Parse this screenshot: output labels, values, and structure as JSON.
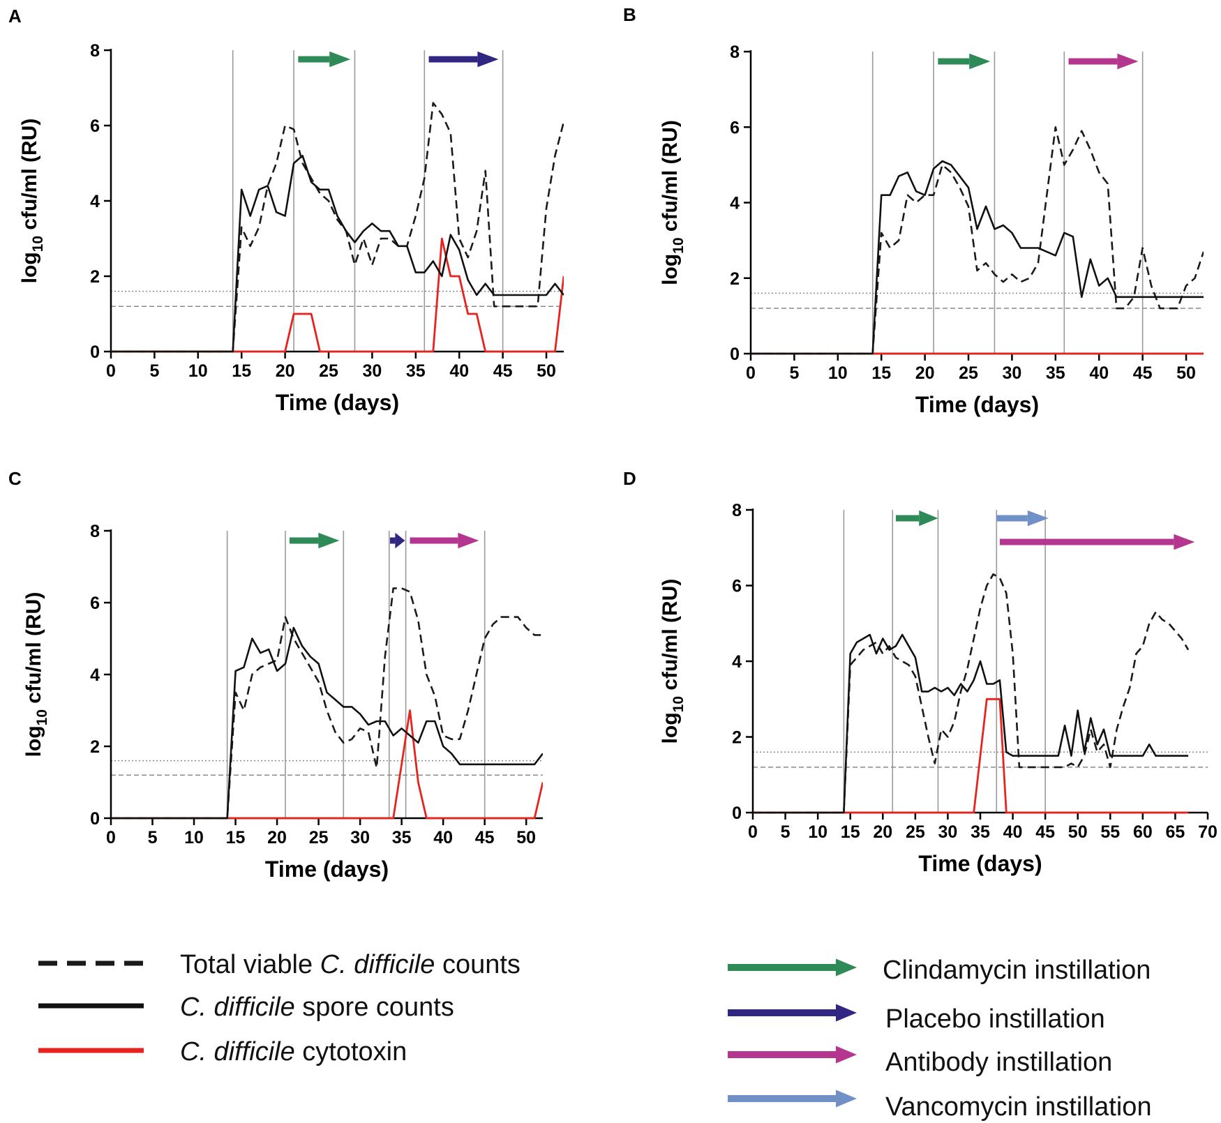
{
  "colors": {
    "total": "#1a1a1a",
    "spore": "#111111",
    "cytotoxin": "#e8231e",
    "clindamycin": "#2e8b57",
    "placebo": "#312783",
    "antibody": "#b4368f",
    "vancomycin": "#7190c8",
    "vline": "#9a9a9a",
    "lod": "#8a8a8a"
  },
  "legend": {
    "series": [
      {
        "key": "total",
        "style": "dashed",
        "prefix": "Total viable ",
        "italic": "C. difficile",
        "suffix": " counts"
      },
      {
        "key": "spore",
        "style": "solid",
        "prefix": "",
        "italic": "C. difficile",
        "suffix": " spore counts"
      },
      {
        "key": "cytotoxin",
        "style": "red",
        "prefix": "",
        "italic": "C. difficile",
        "suffix": " cytotoxin"
      }
    ],
    "arrows": [
      {
        "key": "clindamycin",
        "label": "Clindamycin instillation"
      },
      {
        "key": "placebo",
        "label": "Placebo instillation"
      },
      {
        "key": "antibody",
        "label": "Antibody instillation"
      },
      {
        "key": "vancomycin",
        "label": "Vancomycin instillation"
      }
    ]
  },
  "chart_data": [
    {
      "panel": "A",
      "type": "line",
      "xlabel": "Time (days)",
      "ylabel": {
        "base": "log",
        "sub": "10",
        "rest": " cfu/ml (RU)"
      },
      "xlim": [
        0,
        52
      ],
      "ylim": [
        0,
        8
      ],
      "xticks": [
        0,
        5,
        10,
        15,
        20,
        25,
        30,
        35,
        40,
        45,
        50
      ],
      "yticks": [
        0,
        2,
        4,
        6,
        8
      ],
      "vlines": [
        14,
        21,
        28,
        36,
        45
      ],
      "lod": [
        1.6,
        1.2
      ],
      "arrows": [
        {
          "drug": "clindamycin",
          "from": 21.5,
          "to": 27.5
        },
        {
          "drug": "placebo",
          "from": 36.5,
          "to": 44.5
        }
      ],
      "series": [
        {
          "name": "Total viable C. difficile counts",
          "key": "total",
          "x": [
            0,
            14,
            15,
            16,
            17,
            18,
            19,
            20,
            21,
            22,
            23,
            24,
            25,
            26,
            27,
            28,
            29,
            30,
            31,
            32,
            33,
            34,
            35,
            36,
            37,
            38,
            39,
            40,
            41,
            42,
            43,
            44,
            45,
            46,
            47,
            48,
            49,
            50,
            51,
            52
          ],
          "y": [
            0,
            0,
            3.3,
            2.8,
            3.3,
            4.4,
            5.0,
            6.0,
            5.9,
            5.0,
            4.6,
            4.2,
            4.0,
            3.5,
            3.2,
            2.3,
            3.0,
            2.3,
            3.0,
            3.0,
            2.8,
            2.8,
            3.6,
            4.6,
            6.6,
            6.3,
            5.8,
            3.0,
            2.5,
            3.2,
            4.8,
            1.2,
            1.2,
            1.2,
            1.2,
            1.2,
            1.2,
            3.8,
            5.2,
            6.1
          ]
        },
        {
          "name": "C. difficile spore counts",
          "key": "spore",
          "x": [
            0,
            14,
            15,
            16,
            17,
            18,
            19,
            20,
            21,
            22,
            23,
            24,
            25,
            26,
            27,
            28,
            29,
            30,
            31,
            32,
            33,
            34,
            35,
            36,
            37,
            38,
            39,
            40,
            41,
            42,
            43,
            44,
            45,
            46,
            47,
            48,
            49,
            50,
            51,
            52
          ],
          "y": [
            0,
            0,
            4.3,
            3.6,
            4.3,
            4.4,
            3.7,
            3.6,
            5.0,
            5.2,
            4.5,
            4.3,
            4.3,
            3.6,
            3.2,
            2.9,
            3.2,
            3.4,
            3.2,
            3.2,
            2.8,
            2.8,
            2.1,
            2.1,
            2.4,
            2.0,
            3.1,
            2.7,
            1.9,
            1.5,
            1.8,
            1.5,
            1.5,
            1.5,
            1.5,
            1.5,
            1.5,
            1.5,
            1.8,
            1.5
          ]
        },
        {
          "name": "C. difficile cytotoxin",
          "key": "cytotoxin",
          "x": [
            0,
            20,
            21,
            22,
            23,
            24,
            37,
            38,
            39,
            40,
            41,
            42,
            43,
            51,
            52
          ],
          "y": [
            0,
            0,
            1,
            1,
            1,
            0,
            0,
            3,
            2,
            2,
            1,
            1,
            0,
            0,
            2
          ]
        }
      ]
    },
    {
      "panel": "B",
      "type": "line",
      "xlabel": "Time (days)",
      "ylabel": {
        "base": "log",
        "sub": "10",
        "rest": " cfu/ml (RU)"
      },
      "xlim": [
        0,
        52
      ],
      "ylim": [
        0,
        8
      ],
      "xticks": [
        0,
        5,
        10,
        15,
        20,
        25,
        30,
        35,
        40,
        45,
        50
      ],
      "yticks": [
        0,
        2,
        4,
        6,
        8
      ],
      "vlines": [
        14,
        21,
        28,
        36,
        45
      ],
      "lod": [
        1.6,
        1.2
      ],
      "arrows": [
        {
          "drug": "clindamycin",
          "from": 21.5,
          "to": 27.5
        },
        {
          "drug": "antibody",
          "from": 36.5,
          "to": 44.5
        }
      ],
      "series": [
        {
          "name": "Total viable C. difficile counts",
          "key": "total",
          "x": [
            0,
            14,
            15,
            16,
            17,
            18,
            19,
            20,
            21,
            22,
            23,
            24,
            25,
            26,
            27,
            28,
            29,
            30,
            31,
            32,
            33,
            34,
            35,
            36,
            37,
            38,
            39,
            40,
            41,
            42,
            43,
            44,
            45,
            46,
            47,
            48,
            49,
            50,
            51,
            52
          ],
          "y": [
            0,
            0,
            3.2,
            2.8,
            3.0,
            4.2,
            4.0,
            4.2,
            4.2,
            5.0,
            4.8,
            4.4,
            3.9,
            2.2,
            2.4,
            2.1,
            1.9,
            2.1,
            1.9,
            2.0,
            2.4,
            4.2,
            6.0,
            5.0,
            5.4,
            5.9,
            5.4,
            4.8,
            4.5,
            1.2,
            1.2,
            1.5,
            2.8,
            1.8,
            1.2,
            1.2,
            1.2,
            1.8,
            2.0,
            2.7
          ]
        },
        {
          "name": "C. difficile spore counts",
          "key": "spore",
          "x": [
            0,
            14,
            15,
            16,
            17,
            18,
            19,
            20,
            21,
            22,
            23,
            24,
            25,
            26,
            27,
            28,
            29,
            30,
            31,
            32,
            33,
            34,
            35,
            36,
            37,
            38,
            39,
            40,
            41,
            42,
            43,
            44,
            45,
            46,
            47,
            48,
            49,
            50,
            51,
            52
          ],
          "y": [
            0,
            0,
            4.2,
            4.2,
            4.7,
            4.8,
            4.3,
            4.2,
            4.9,
            5.1,
            5.0,
            4.7,
            4.4,
            3.3,
            3.9,
            3.3,
            3.4,
            3.2,
            2.8,
            2.8,
            2.8,
            2.7,
            2.6,
            3.2,
            3.1,
            1.5,
            2.5,
            1.8,
            2.0,
            1.5,
            1.5,
            1.5,
            1.5,
            1.5,
            1.5,
            1.5,
            1.5,
            1.5,
            1.5,
            1.5
          ]
        },
        {
          "name": "C. difficile cytotoxin",
          "key": "cytotoxin",
          "x": [
            0,
            52
          ],
          "y": [
            0,
            0
          ]
        }
      ]
    },
    {
      "panel": "C",
      "type": "line",
      "xlabel": "Time (days)",
      "ylabel": {
        "base": "log",
        "sub": "10",
        "rest": " cfu/ml (RU)"
      },
      "xlim": [
        0,
        52
      ],
      "ylim": [
        0,
        8
      ],
      "xticks": [
        0,
        5,
        10,
        15,
        20,
        25,
        30,
        35,
        40,
        45,
        50
      ],
      "yticks": [
        0,
        2,
        4,
        6,
        8
      ],
      "vlines": [
        14,
        21,
        28,
        33.5,
        35.5,
        45
      ],
      "lod": [
        1.6,
        1.2
      ],
      "arrows": [
        {
          "drug": "clindamycin",
          "from": 21.5,
          "to": 27.5
        },
        {
          "drug": "placebo",
          "from": 33.6,
          "to": 35.4
        },
        {
          "drug": "antibody",
          "from": 36,
          "to": 44.3
        }
      ],
      "series": [
        {
          "name": "Total viable C. difficile counts",
          "key": "total",
          "x": [
            0,
            14,
            15,
            16,
            17,
            18,
            19,
            20,
            21,
            22,
            23,
            24,
            25,
            26,
            27,
            28,
            29,
            30,
            31,
            32,
            33,
            34,
            35,
            36,
            37,
            38,
            39,
            40,
            41,
            42,
            43,
            44,
            45,
            46,
            47,
            48,
            49,
            50,
            51,
            52
          ],
          "y": [
            0,
            0,
            3.5,
            3.0,
            4.0,
            4.2,
            4.3,
            4.4,
            5.6,
            5.0,
            4.6,
            4.2,
            3.8,
            3.0,
            2.4,
            2.1,
            2.2,
            2.5,
            2.4,
            1.4,
            4.5,
            6.4,
            6.4,
            6.3,
            5.5,
            4.0,
            3.4,
            2.3,
            2.2,
            2.2,
            3.0,
            4.0,
            5.0,
            5.4,
            5.6,
            5.6,
            5.6,
            5.3,
            5.1,
            5.1
          ]
        },
        {
          "name": "C. difficile spore counts",
          "key": "spore",
          "x": [
            0,
            14,
            15,
            16,
            17,
            18,
            19,
            20,
            21,
            22,
            23,
            24,
            25,
            26,
            27,
            28,
            29,
            30,
            31,
            32,
            33,
            34,
            35,
            36,
            37,
            38,
            39,
            40,
            41,
            42,
            43,
            44,
            45,
            46,
            47,
            48,
            49,
            50,
            51,
            52
          ],
          "y": [
            0,
            0,
            4.1,
            4.2,
            5.0,
            4.6,
            4.7,
            4.1,
            4.3,
            5.3,
            4.8,
            4.5,
            4.3,
            3.5,
            3.3,
            3.1,
            3.1,
            2.9,
            2.6,
            2.7,
            2.7,
            2.3,
            2.5,
            2.3,
            2.1,
            2.7,
            2.7,
            2.0,
            1.8,
            1.5,
            1.5,
            1.5,
            1.5,
            1.5,
            1.5,
            1.5,
            1.5,
            1.5,
            1.5,
            1.8
          ]
        },
        {
          "name": "C. difficile cytotoxin",
          "key": "cytotoxin",
          "x": [
            0,
            34,
            35,
            36,
            37,
            38,
            51,
            52
          ],
          "y": [
            0,
            0,
            1.5,
            3,
            1,
            0,
            0,
            1
          ]
        }
      ]
    },
    {
      "panel": "D",
      "type": "line",
      "xlabel": "Time (days)",
      "ylabel": {
        "base": "log",
        "sub": "10",
        "rest": " cfu/ml (RU)"
      },
      "xlim": [
        0,
        70
      ],
      "ylim": [
        0,
        8
      ],
      "xticks": [
        0,
        5,
        10,
        15,
        20,
        25,
        30,
        35,
        40,
        45,
        50,
        55,
        60,
        65,
        70
      ],
      "yticks": [
        0,
        2,
        4,
        6,
        8
      ],
      "vlines": [
        14,
        21.5,
        28.5,
        37.5,
        45
      ],
      "lod": [
        1.6,
        1.2
      ],
      "arrows": [
        {
          "drug": "clindamycin",
          "from": 22,
          "to": 28.5
        },
        {
          "drug": "vancomycin",
          "from": 37.5,
          "to": 45.5
        },
        {
          "drug": "antibody",
          "from": 38,
          "to": 68
        }
      ],
      "series": [
        {
          "name": "Total viable C. difficile counts",
          "key": "total",
          "x": [
            0,
            14,
            15,
            16,
            17,
            18,
            19,
            20,
            21,
            22,
            23,
            24,
            25,
            26,
            27,
            28,
            29,
            30,
            31,
            32,
            33,
            34,
            35,
            36,
            37,
            38,
            39,
            40,
            41,
            42,
            43,
            44,
            45,
            46,
            47,
            48,
            49,
            50,
            51,
            52,
            53,
            54,
            55,
            56,
            57,
            58,
            59,
            60,
            61,
            62,
            63,
            64,
            65,
            66,
            67
          ],
          "y": [
            0,
            0,
            3.9,
            4.1,
            4.3,
            4.4,
            4.5,
            4.2,
            4.4,
            4.1,
            4.0,
            3.9,
            3.6,
            2.8,
            2.0,
            1.3,
            2.2,
            2.0,
            2.4,
            3.2,
            3.8,
            4.6,
            5.4,
            6.0,
            6.3,
            6.2,
            5.8,
            4.2,
            1.2,
            1.2,
            1.2,
            1.2,
            1.2,
            1.2,
            1.2,
            1.2,
            1.3,
            1.2,
            1.5,
            2.2,
            1.6,
            1.8,
            1.2,
            2.2,
            2.8,
            3.3,
            4.2,
            4.4,
            5.0,
            5.3,
            5.1,
            5.0,
            4.8,
            4.6,
            4.3
          ]
        },
        {
          "name": "C. difficile spore counts",
          "key": "spore",
          "x": [
            0,
            14,
            15,
            16,
            17,
            18,
            19,
            20,
            21,
            22,
            23,
            24,
            25,
            26,
            27,
            28,
            29,
            30,
            31,
            32,
            33,
            34,
            35,
            36,
            37,
            38,
            39,
            40,
            41,
            42,
            43,
            44,
            45,
            46,
            47,
            48,
            49,
            50,
            51,
            52,
            53,
            54,
            55,
            56,
            57,
            58,
            59,
            60,
            61,
            62,
            63,
            64,
            65,
            66,
            67
          ],
          "y": [
            0,
            0,
            4.2,
            4.5,
            4.6,
            4.7,
            4.2,
            4.6,
            4.3,
            4.4,
            4.7,
            4.4,
            4.1,
            3.2,
            3.2,
            3.3,
            3.2,
            3.3,
            3.1,
            3.4,
            3.2,
            3.5,
            4.0,
            3.4,
            3.4,
            3.5,
            1.6,
            1.5,
            1.5,
            1.5,
            1.5,
            1.5,
            1.5,
            1.5,
            1.5,
            2.3,
            1.5,
            2.7,
            1.6,
            2.5,
            1.8,
            2.2,
            1.5,
            1.5,
            1.5,
            1.5,
            1.5,
            1.5,
            1.8,
            1.5,
            1.5,
            1.5,
            1.5,
            1.5,
            1.5
          ]
        },
        {
          "name": "C. difficile cytotoxin",
          "key": "cytotoxin",
          "x": [
            0,
            34,
            35,
            36,
            37,
            38,
            39,
            67
          ],
          "y": [
            0,
            0,
            1.5,
            3,
            3,
            3,
            0,
            0
          ]
        }
      ]
    }
  ]
}
